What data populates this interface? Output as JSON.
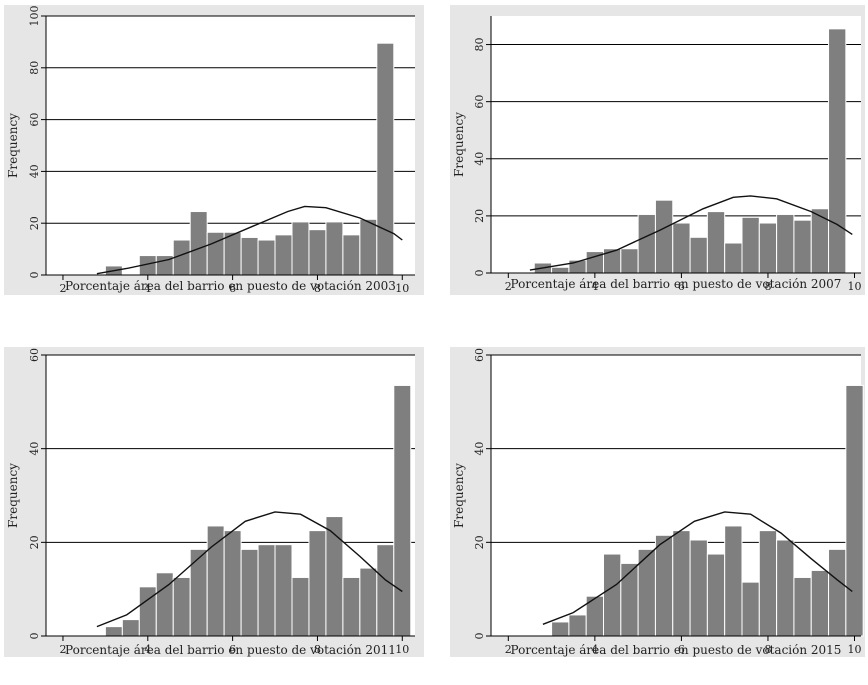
{
  "chart_data": [
    {
      "type": "bar",
      "subtype": "histogram-with-normal-density",
      "xlabel": "Porcentaje área del barrio en puesto de votación 2003",
      "ylabel": "Frequency",
      "xlim": [
        1.6,
        10.3
      ],
      "ylim": [
        0,
        100
      ],
      "xticks": [
        "2",
        "4",
        "6",
        "8",
        "10"
      ],
      "yticks": [
        "0",
        "20",
        "40",
        "60",
        "80",
        "100"
      ],
      "grid": true,
      "bins": [
        {
          "x": 3.0,
          "value": 3.5
        },
        {
          "x": 3.4,
          "value": 0
        },
        {
          "x": 3.8,
          "value": 7.5
        },
        {
          "x": 4.2,
          "value": 7.5
        },
        {
          "x": 4.6,
          "value": 13.5
        },
        {
          "x": 5.0,
          "value": 24.5
        },
        {
          "x": 5.4,
          "value": 16.5
        },
        {
          "x": 5.8,
          "value": 16.5
        },
        {
          "x": 6.2,
          "value": 14.5
        },
        {
          "x": 6.6,
          "value": 13.5
        },
        {
          "x": 7.0,
          "value": 15.5
        },
        {
          "x": 7.4,
          "value": 20.5
        },
        {
          "x": 7.8,
          "value": 17.5
        },
        {
          "x": 8.2,
          "value": 20.5
        },
        {
          "x": 8.6,
          "value": 15.5
        },
        {
          "x": 9.0,
          "value": 21.5
        },
        {
          "x": 9.4,
          "value": 89.5
        }
      ],
      "curve": [
        [
          2.8,
          0.5
        ],
        [
          3.5,
          2.5
        ],
        [
          4.5,
          6
        ],
        [
          5.5,
          12
        ],
        [
          6.5,
          19
        ],
        [
          7.3,
          24.5
        ],
        [
          7.7,
          26.5
        ],
        [
          8.2,
          26
        ],
        [
          9.0,
          22
        ],
        [
          9.8,
          16
        ],
        [
          10.0,
          13.5
        ]
      ]
    },
    {
      "type": "bar",
      "subtype": "histogram-with-normal-density",
      "xlabel": "Porcentaje área del barrio en puesto de votación 2007",
      "ylabel": "Frequency",
      "xlim": [
        1.6,
        10.15
      ],
      "ylim": [
        0,
        90
      ],
      "xticks": [
        "2",
        "4",
        "6",
        "8",
        "10"
      ],
      "yticks": [
        "0",
        "20",
        "40",
        "60",
        "80"
      ],
      "grid": true,
      "bins": [
        {
          "x": 2.6,
          "value": 3.5
        },
        {
          "x": 3.0,
          "value": 2
        },
        {
          "x": 3.4,
          "value": 4.5
        },
        {
          "x": 3.8,
          "value": 7.5
        },
        {
          "x": 4.2,
          "value": 8.5
        },
        {
          "x": 4.6,
          "value": 8.5
        },
        {
          "x": 5.0,
          "value": 20.5
        },
        {
          "x": 5.4,
          "value": 25.5
        },
        {
          "x": 5.8,
          "value": 17.5
        },
        {
          "x": 6.2,
          "value": 12.5
        },
        {
          "x": 6.6,
          "value": 21.5
        },
        {
          "x": 7.0,
          "value": 10.5
        },
        {
          "x": 7.4,
          "value": 19.5
        },
        {
          "x": 7.8,
          "value": 17.5
        },
        {
          "x": 8.2,
          "value": 20.5
        },
        {
          "x": 8.6,
          "value": 18.5
        },
        {
          "x": 9.0,
          "value": 22.5
        },
        {
          "x": 9.4,
          "value": 85.5
        }
      ],
      "curve": [
        [
          2.5,
          1
        ],
        [
          3.5,
          3.5
        ],
        [
          4.5,
          8
        ],
        [
          5.5,
          15
        ],
        [
          6.5,
          22.5
        ],
        [
          7.2,
          26.5
        ],
        [
          7.6,
          27
        ],
        [
          8.2,
          26
        ],
        [
          9.0,
          21.5
        ],
        [
          9.6,
          17
        ],
        [
          9.95,
          13.5
        ]
      ]
    },
    {
      "type": "bar",
      "subtype": "histogram-with-normal-density",
      "xlabel": "Porcentaje área del barrio en puesto de votación 2011",
      "ylabel": "Frequency",
      "xlim": [
        1.6,
        10.3
      ],
      "ylim": [
        0,
        60
      ],
      "xticks": [
        "2",
        "4",
        "6",
        "8",
        "10"
      ],
      "yticks": [
        "0",
        "20",
        "40",
        "60"
      ],
      "grid": true,
      "bins": [
        {
          "x": 3.0,
          "value": 2
        },
        {
          "x": 3.4,
          "value": 3.5
        },
        {
          "x": 3.8,
          "value": 10.5
        },
        {
          "x": 4.2,
          "value": 13.5
        },
        {
          "x": 4.6,
          "value": 12.5
        },
        {
          "x": 5.0,
          "value": 18.5
        },
        {
          "x": 5.4,
          "value": 23.5
        },
        {
          "x": 5.8,
          "value": 22.5
        },
        {
          "x": 6.2,
          "value": 18.5
        },
        {
          "x": 6.6,
          "value": 19.5
        },
        {
          "x": 7.0,
          "value": 19.5
        },
        {
          "x": 7.4,
          "value": 12.5
        },
        {
          "x": 7.8,
          "value": 22.5
        },
        {
          "x": 8.2,
          "value": 25.5
        },
        {
          "x": 8.6,
          "value": 12.5
        },
        {
          "x": 9.0,
          "value": 14.5
        },
        {
          "x": 9.4,
          "value": 19.5
        },
        {
          "x": 9.8,
          "value": 53.5
        }
      ],
      "curve": [
        [
          2.8,
          2
        ],
        [
          3.5,
          4.5
        ],
        [
          4.5,
          11
        ],
        [
          5.5,
          19
        ],
        [
          6.3,
          24.5
        ],
        [
          7.0,
          26.5
        ],
        [
          7.6,
          26
        ],
        [
          8.3,
          22.5
        ],
        [
          9.0,
          17
        ],
        [
          9.6,
          12
        ],
        [
          10.0,
          9.5
        ]
      ]
    },
    {
      "type": "bar",
      "subtype": "histogram-with-normal-density",
      "xlabel": "Porcentaje área del barrio en puesto de votación 2015",
      "ylabel": "Frequency",
      "xlim": [
        1.6,
        10.15
      ],
      "ylim": [
        0,
        60
      ],
      "xticks": [
        "2",
        "4",
        "6",
        "8",
        "10"
      ],
      "yticks": [
        "0",
        "20",
        "40",
        "60"
      ],
      "grid": true,
      "bins": [
        {
          "x": 3.0,
          "value": 3
        },
        {
          "x": 3.4,
          "value": 4.5
        },
        {
          "x": 3.8,
          "value": 8.5
        },
        {
          "x": 4.2,
          "value": 17.5
        },
        {
          "x": 4.6,
          "value": 15.5
        },
        {
          "x": 5.0,
          "value": 18.5
        },
        {
          "x": 5.4,
          "value": 21.5
        },
        {
          "x": 5.8,
          "value": 22.5
        },
        {
          "x": 6.2,
          "value": 20.5
        },
        {
          "x": 6.6,
          "value": 17.5
        },
        {
          "x": 7.0,
          "value": 23.5
        },
        {
          "x": 7.4,
          "value": 11.5
        },
        {
          "x": 7.8,
          "value": 22.5
        },
        {
          "x": 8.2,
          "value": 20.5
        },
        {
          "x": 8.6,
          "value": 12.5
        },
        {
          "x": 9.0,
          "value": 14
        },
        {
          "x": 9.4,
          "value": 18.5
        },
        {
          "x": 9.8,
          "value": 53.5
        }
      ],
      "curve": [
        [
          2.8,
          2.5
        ],
        [
          3.5,
          5
        ],
        [
          4.5,
          11
        ],
        [
          5.5,
          19.5
        ],
        [
          6.3,
          24.5
        ],
        [
          7.0,
          26.5
        ],
        [
          7.6,
          26
        ],
        [
          8.3,
          22
        ],
        [
          9.0,
          16.5
        ],
        [
          9.6,
          12
        ],
        [
          9.95,
          9.5
        ]
      ]
    }
  ]
}
